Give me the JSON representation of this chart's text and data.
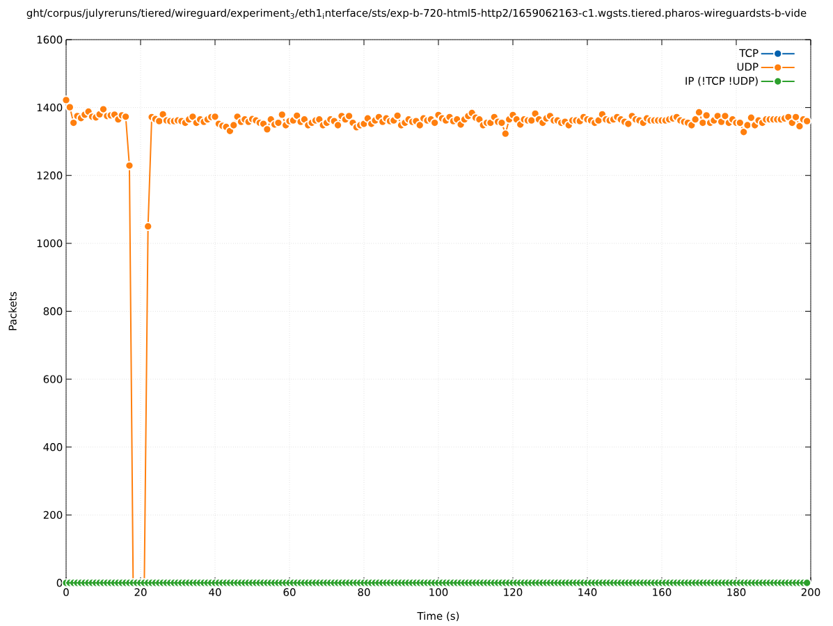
{
  "chart_data": {
    "type": "line",
    "title": "ght/corpus/julyreruns/tiered/wireguard/experiment$_{3}$/eth1$_{i}$nterface/sts/exp-b-720-html5-http2/1659062163-c1.wgsts.tiered.pharos-wireguardsts-b-vide",
    "xlabel": "Time (s)",
    "ylabel": "Packets",
    "x": [
      0,
      1,
      2,
      3,
      4,
      5,
      6,
      7,
      8,
      9,
      10,
      11,
      12,
      13,
      14,
      15,
      16,
      17,
      18,
      19,
      20,
      21,
      22,
      23,
      24,
      25,
      26,
      27,
      28,
      29,
      30,
      31,
      32,
      33,
      34,
      35,
      36,
      37,
      38,
      39,
      40,
      41,
      42,
      43,
      44,
      45,
      46,
      47,
      48,
      49,
      50,
      51,
      52,
      53,
      54,
      55,
      56,
      57,
      58,
      59,
      60,
      61,
      62,
      63,
      64,
      65,
      66,
      67,
      68,
      69,
      70,
      71,
      72,
      73,
      74,
      75,
      76,
      77,
      78,
      79,
      80,
      81,
      82,
      83,
      84,
      85,
      86,
      87,
      88,
      89,
      90,
      91,
      92,
      93,
      94,
      95,
      96,
      97,
      98,
      99,
      100,
      101,
      102,
      103,
      104,
      105,
      106,
      107,
      108,
      109,
      110,
      111,
      112,
      113,
      114,
      115,
      116,
      117,
      118,
      119,
      120,
      121,
      122,
      123,
      124,
      125,
      126,
      127,
      128,
      129,
      130,
      131,
      132,
      133,
      134,
      135,
      136,
      137,
      138,
      139,
      140,
      141,
      142,
      143,
      144,
      145,
      146,
      147,
      148,
      149,
      150,
      151,
      152,
      153,
      154,
      155,
      156,
      157,
      158,
      159,
      160,
      161,
      162,
      163,
      164,
      165,
      166,
      167,
      168,
      169,
      170,
      171,
      172,
      173,
      174,
      175,
      176,
      177,
      178,
      179,
      180,
      181,
      182,
      183,
      184,
      185,
      186,
      187,
      188,
      189,
      190,
      191,
      192,
      193,
      194,
      195,
      196,
      197,
      198,
      199
    ],
    "series": [
      {
        "name": "TCP",
        "color": "#0060ad",
        "values": [
          null,
          null,
          null,
          null,
          null,
          null,
          null,
          null,
          null,
          null,
          null,
          null,
          null,
          null,
          null,
          null,
          null,
          null,
          null,
          null,
          null,
          null,
          null,
          null,
          null,
          null,
          null,
          null,
          null,
          null,
          null,
          null,
          null,
          null,
          null,
          null,
          null,
          null,
          null,
          null,
          null,
          null,
          null,
          null,
          null,
          null,
          null,
          null,
          null,
          null,
          null,
          null,
          null,
          null,
          null,
          null,
          null,
          null,
          null,
          null,
          null,
          null,
          null,
          null,
          null,
          null,
          null,
          null,
          null,
          null,
          null,
          null,
          null,
          null,
          null,
          null,
          null,
          null,
          null,
          null,
          null,
          null,
          null,
          null,
          null,
          null,
          null,
          null,
          null,
          null,
          null,
          null,
          null,
          null,
          null,
          null,
          null,
          null,
          null,
          null,
          null,
          null,
          null,
          null,
          null,
          null,
          null,
          null,
          null,
          null,
          null,
          null,
          null,
          null,
          null,
          null,
          null,
          null,
          null,
          null,
          null,
          null,
          null,
          null,
          null,
          null,
          null,
          null,
          null,
          null,
          null,
          null,
          null,
          null,
          null,
          null,
          null,
          null,
          null,
          null,
          null,
          null,
          null,
          null,
          null,
          null,
          null,
          null,
          null,
          null,
          null,
          null,
          null,
          null,
          null,
          null,
          null,
          null,
          null,
          null,
          null,
          null,
          null,
          null,
          null,
          null,
          null,
          null,
          null,
          null,
          null,
          null,
          null,
          null,
          null,
          null,
          null,
          null,
          null,
          null,
          null,
          null,
          null,
          null,
          null,
          null,
          null,
          null,
          null,
          null,
          null,
          null,
          null,
          null,
          null,
          null,
          null,
          null,
          null,
          null
        ]
      },
      {
        "name": "UDP",
        "color": "#ff7f0e",
        "values": [
          1422,
          1401,
          1355,
          1375,
          1369,
          1379,
          1388,
          1373,
          1371,
          1380,
          1395,
          1375,
          1377,
          1379,
          1365,
          1377,
          1373,
          1229,
          0,
          0,
          0,
          0,
          1050,
          1372,
          1366,
          1360,
          1380,
          1362,
          1360,
          1360,
          1362,
          1360,
          1355,
          1365,
          1373,
          1355,
          1365,
          1358,
          1365,
          1372,
          1373,
          1352,
          1346,
          1343,
          1331,
          1348,
          1373,
          1358,
          1365,
          1358,
          1366,
          1362,
          1355,
          1352,
          1336,
          1365,
          1350,
          1355,
          1379,
          1348,
          1360,
          1362,
          1376,
          1358,
          1365,
          1348,
          1355,
          1362,
          1365,
          1348,
          1355,
          1365,
          1360,
          1348,
          1375,
          1365,
          1375,
          1355,
          1342,
          1348,
          1352,
          1368,
          1352,
          1362,
          1372,
          1358,
          1368,
          1360,
          1362,
          1376,
          1348,
          1355,
          1365,
          1358,
          1360,
          1348,
          1368,
          1362,
          1365,
          1355,
          1378,
          1368,
          1362,
          1372,
          1360,
          1365,
          1350,
          1365,
          1375,
          1384,
          1370,
          1365,
          1348,
          1355,
          1355,
          1372,
          1358,
          1355,
          1323,
          1365,
          1378,
          1365,
          1350,
          1365,
          1362,
          1362,
          1382,
          1365,
          1355,
          1368,
          1375,
          1362,
          1362,
          1355,
          1358,
          1348,
          1362,
          1362,
          1360,
          1372,
          1365,
          1362,
          1355,
          1362,
          1380,
          1365,
          1362,
          1365,
          1372,
          1365,
          1358,
          1352,
          1375,
          1365,
          1362,
          1355,
          1368,
          1362,
          1362,
          1362,
          1362,
          1362,
          1365,
          1368,
          1372,
          1362,
          1358,
          1355,
          1348,
          1365,
          1386,
          1355,
          1377,
          1355,
          1362,
          1375,
          1358,
          1375,
          1355,
          1365,
          1355,
          1355,
          1328,
          1348,
          1370,
          1348,
          1362,
          1355,
          1365,
          1365,
          1365,
          1365,
          1365,
          1368,
          1372,
          1355,
          1372,
          1345,
          1365,
          1360
        ]
      },
      {
        "name": "IP (!TCP !UDP)",
        "color": "#2ca02c",
        "values": [
          0,
          0,
          0,
          0,
          0,
          0,
          0,
          0,
          0,
          0,
          0,
          0,
          0,
          0,
          0,
          0,
          0,
          0,
          0,
          0,
          0,
          0,
          0,
          0,
          0,
          0,
          0,
          0,
          0,
          0,
          0,
          0,
          0,
          0,
          0,
          0,
          0,
          0,
          0,
          0,
          0,
          0,
          0,
          0,
          0,
          0,
          0,
          0,
          0,
          0,
          0,
          0,
          0,
          0,
          0,
          0,
          0,
          0,
          0,
          0,
          0,
          0,
          0,
          0,
          0,
          0,
          0,
          0,
          0,
          0,
          0,
          0,
          0,
          0,
          0,
          0,
          0,
          0,
          0,
          0,
          0,
          0,
          0,
          0,
          0,
          0,
          0,
          0,
          0,
          0,
          0,
          0,
          0,
          0,
          0,
          0,
          0,
          0,
          0,
          0,
          0,
          0,
          0,
          0,
          0,
          0,
          0,
          0,
          0,
          0,
          0,
          0,
          0,
          0,
          0,
          0,
          0,
          0,
          0,
          0,
          0,
          0,
          0,
          0,
          0,
          0,
          0,
          0,
          0,
          0,
          0,
          0,
          0,
          0,
          0,
          0,
          0,
          0,
          0,
          0,
          0,
          0,
          0,
          0,
          0,
          0,
          0,
          0,
          0,
          0,
          0,
          0,
          0,
          0,
          0,
          0,
          0,
          0,
          0,
          0,
          0,
          0,
          0,
          0,
          0,
          0,
          0,
          0,
          0,
          0,
          0,
          0,
          0,
          0,
          0,
          0,
          0,
          0,
          0,
          0,
          0,
          0,
          0,
          0,
          0,
          0,
          0,
          0,
          0,
          0,
          0,
          0,
          0,
          0,
          0,
          0,
          0,
          0,
          0,
          0
        ]
      }
    ],
    "xlim": [
      0,
      200
    ],
    "ylim": [
      0,
      1600
    ],
    "xticks": [
      0,
      20,
      40,
      60,
      80,
      100,
      120,
      140,
      160,
      180,
      200
    ],
    "yticks": [
      0,
      200,
      400,
      600,
      800,
      1000,
      1200,
      1400,
      1600
    ],
    "grid": true,
    "legend": "top right",
    "marker": "circle",
    "line_style": "solid"
  }
}
